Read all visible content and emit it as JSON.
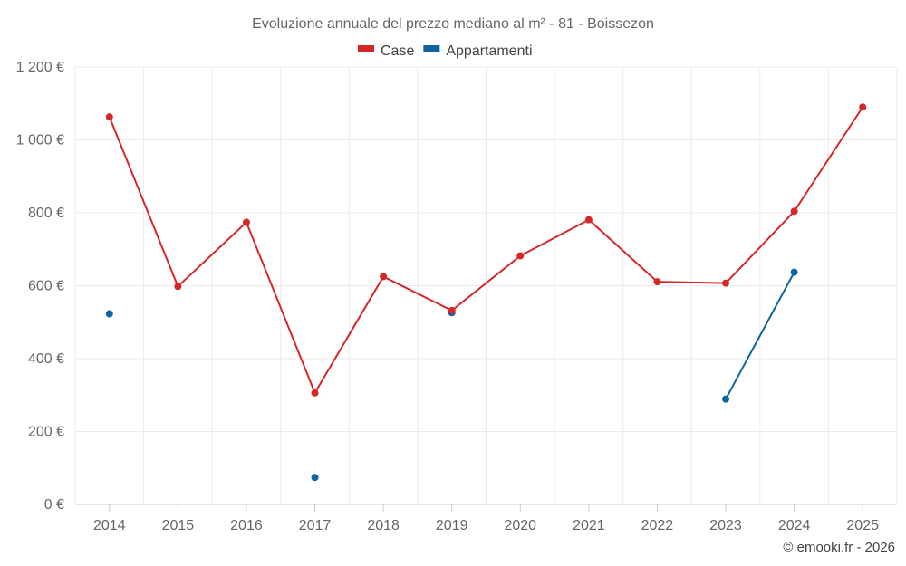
{
  "chart_data": {
    "type": "line",
    "title": "Evoluzione annuale del prezzo mediano al m² - 81 - Boissezon",
    "xlabel": "",
    "ylabel": "",
    "categories": [
      "2014",
      "2015",
      "2016",
      "2017",
      "2018",
      "2019",
      "2020",
      "2021",
      "2022",
      "2023",
      "2024",
      "2025"
    ],
    "ylim": [
      0,
      1200
    ],
    "yticks": [
      0,
      200,
      400,
      600,
      800,
      1000,
      1200
    ],
    "ytick_labels": [
      "0 €",
      "200 €",
      "400 €",
      "600 €",
      "800 €",
      "1 000 €",
      "1 200 €"
    ],
    "grid": true,
    "legend_position": "top-center",
    "series": [
      {
        "name": "Case",
        "color": "#d62728",
        "values": [
          1063,
          598,
          774,
          306,
          625,
          532,
          682,
          781,
          611,
          607,
          804,
          1090
        ]
      },
      {
        "name": "Appartamenti",
        "color": "#0e64a0",
        "values": [
          523,
          null,
          null,
          74,
          null,
          526,
          null,
          null,
          null,
          289,
          637,
          null
        ]
      }
    ]
  },
  "credit": "© emooki.fr - 2026"
}
